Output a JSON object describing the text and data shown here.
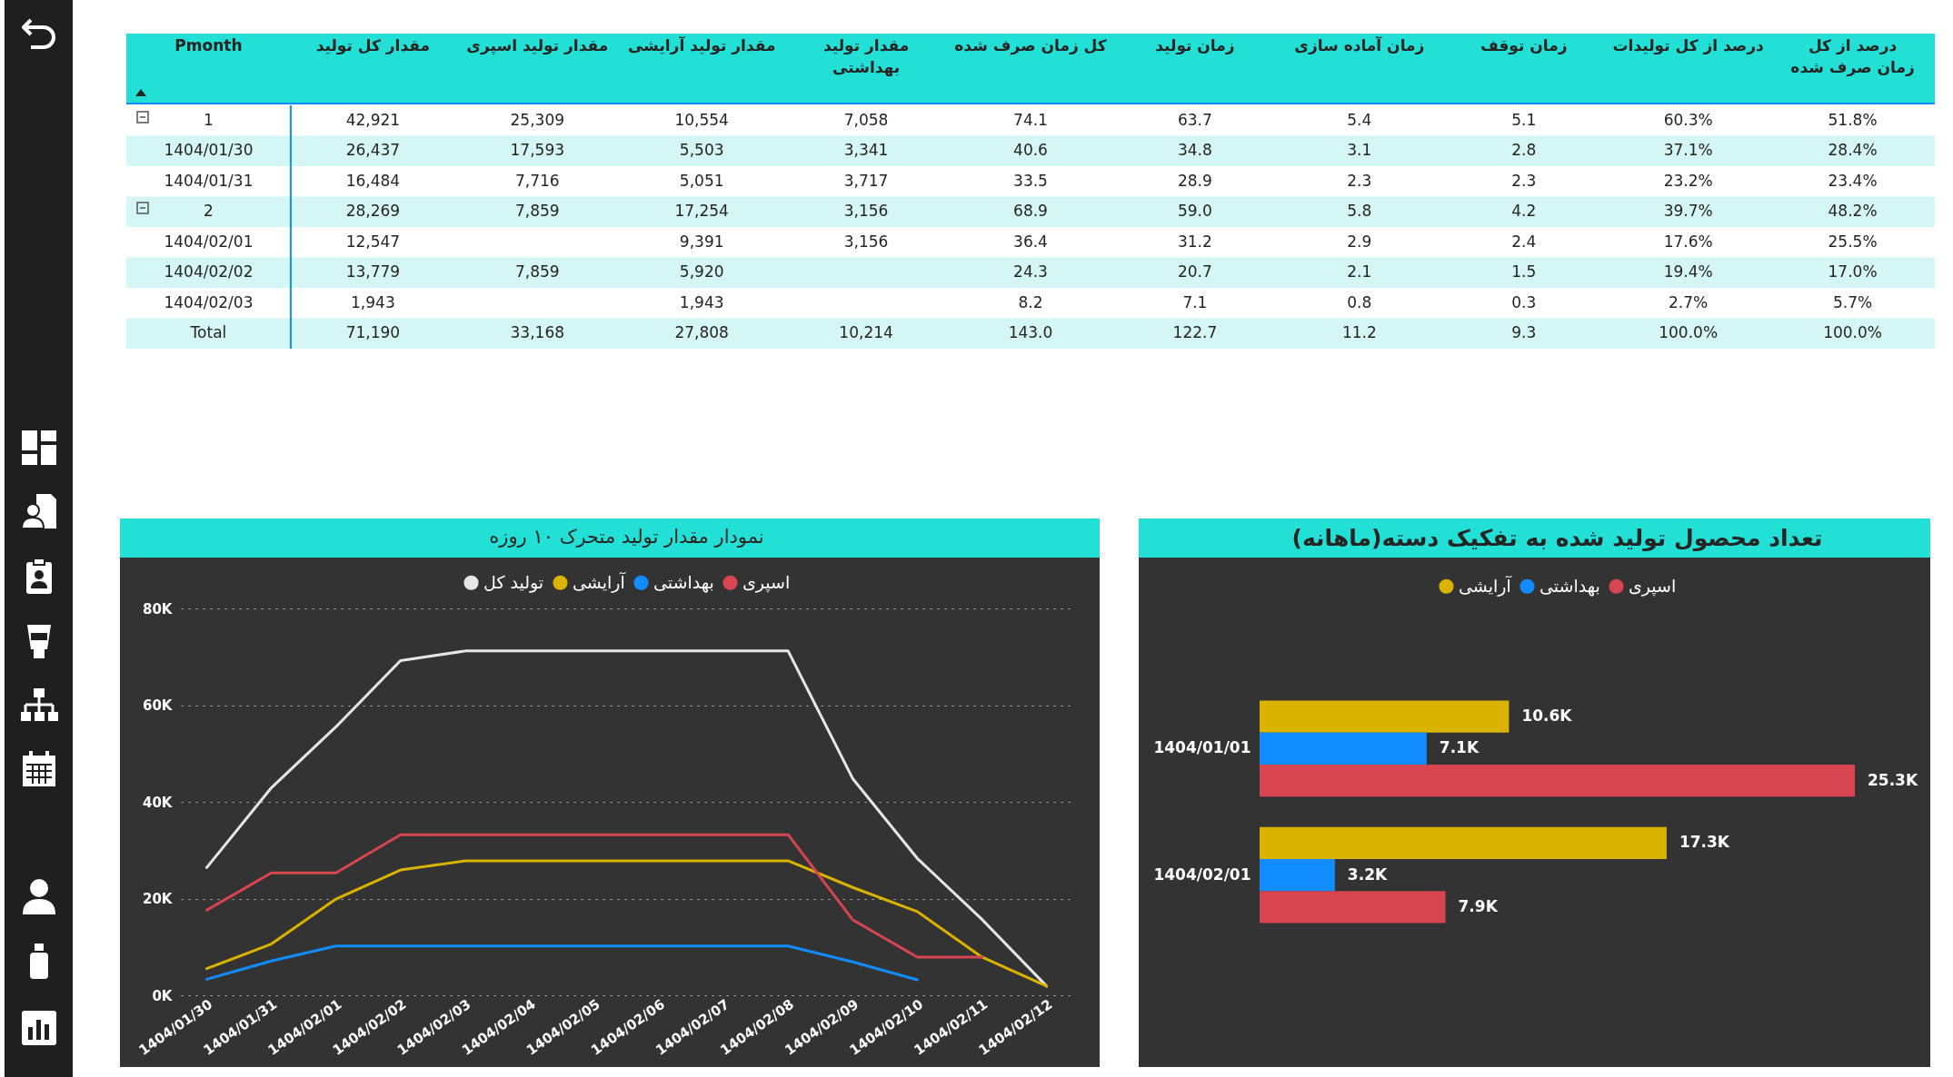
{
  "chart_data": [
    {
      "type": "other",
      "ylabel": "Pmonth",
      "categories": [
        "مقدار کل تولید",
        "مقدار تولید اسپری",
        "مقدار تولید آرایشی",
        "مقدار تولید بهداشتی",
        "کل زمان صرف شده",
        "زمان تولید",
        "زمان آماده سازی",
        "زمان توقف",
        "درصد از کل تولیدات",
        "درصد از کل زمان صرف شده"
      ],
      "y_categories": [
        "1",
        "1404/01/30",
        "1404/01/31",
        "2",
        "1404/02/01",
        "1404/02/02",
        "1404/02/03",
        "Total"
      ],
      "cell_labels": [
        [
          "42,921",
          "25,309",
          "10,554",
          "7,058",
          "74.1",
          "63.7",
          "5.4",
          "5.1",
          "60.3%",
          "51.8%"
        ],
        [
          "26,437",
          "17,593",
          "5,503",
          "3,341",
          "40.6",
          "34.8",
          "3.1",
          "2.8",
          "37.1%",
          "28.4%"
        ],
        [
          "16,484",
          "7,716",
          "5,051",
          "3,717",
          "33.5",
          "28.9",
          "2.3",
          "2.3",
          "23.2%",
          "23.4%"
        ],
        [
          "28,269",
          "7,859",
          "17,254",
          "3,156",
          "68.9",
          "59.0",
          "5.8",
          "4.2",
          "39.7%",
          "48.2%"
        ],
        [
          "12,547",
          null,
          "9,391",
          "3,156",
          "36.4",
          "31.2",
          "2.9",
          "2.4",
          "17.6%",
          "25.5%"
        ],
        [
          "13,779",
          "7,859",
          "5,920",
          null,
          "24.3",
          "20.7",
          "2.1",
          "1.5",
          "19.4%",
          "17.0%"
        ],
        [
          "1,943",
          null,
          "1,943",
          null,
          "8.2",
          "7.1",
          "0.8",
          "0.3",
          "2.7%",
          "5.7%"
        ],
        [
          "71,190",
          "33,168",
          "27,808",
          "10,214",
          "143.0",
          "122.7",
          "11.2",
          "9.3",
          "100.0%",
          "100.0%"
        ]
      ]
    },
    {
      "type": "line",
      "title": "نمودار مقدار تولید متحرک ۱۰ روزه",
      "categories": [
        "1404/01/30",
        "1404/01/31",
        "1404/02/01",
        "1404/02/02",
        "1404/02/03",
        "1404/02/04",
        "1404/02/05",
        "1404/02/06",
        "1404/02/07",
        "1404/02/08",
        "1404/02/09",
        "1404/02/10",
        "1404/02/11",
        "1404/02/12"
      ],
      "series": [
        {
          "name": "تولید کل",
          "color": "#e6e6e6",
          "values": [
            26400,
            42900,
            55500,
            69200,
            71200,
            71200,
            71200,
            71200,
            71200,
            71200,
            44800,
            28300,
            15700,
            1900
          ]
        },
        {
          "name": "آرایشی",
          "color": "#d9b300",
          "values": [
            5500,
            10600,
            19900,
            25900,
            27800,
            27800,
            27800,
            27800,
            27800,
            27800,
            22300,
            17300,
            7900,
            1900
          ]
        },
        {
          "name": "بهداشتی",
          "color": "#118dff",
          "values": [
            3300,
            7100,
            10200,
            10200,
            10200,
            10200,
            10200,
            10200,
            10200,
            10200,
            6900,
            3200,
            null,
            null
          ]
        },
        {
          "name": "اسپری",
          "color": "#d64550",
          "values": [
            17600,
            25300,
            25300,
            33200,
            33200,
            33200,
            33200,
            33200,
            33200,
            33200,
            15600,
            7900,
            7900,
            null
          ]
        }
      ],
      "ylim": [
        0,
        80000
      ],
      "yticks": [
        {
          "value": 0,
          "label": "0K"
        },
        {
          "value": 20000,
          "label": "20K"
        },
        {
          "value": 40000,
          "label": "40K"
        },
        {
          "value": 60000,
          "label": "60K"
        },
        {
          "value": 80000,
          "label": "80K"
        }
      ],
      "grid": "y",
      "legend": "top",
      "line_style": "solid"
    },
    {
      "type": "bar",
      "orientation": "horizontal",
      "title": "تعداد محصول تولید شده به تفکیک دسته(ماهانه)",
      "categories": [
        "1404/01/01",
        "1404/02/01"
      ],
      "series": [
        {
          "name": "آرایشی",
          "color": "#d9b300",
          "values": [
            10600,
            17300
          ],
          "value_labels": [
            "10.6K",
            "17.3K"
          ]
        },
        {
          "name": "بهداشتی",
          "color": "#118dff",
          "values": [
            7100,
            3200
          ],
          "value_labels": [
            "7.1K",
            "3.2K"
          ]
        },
        {
          "name": "اسپری",
          "color": "#d64550",
          "values": [
            25300,
            7900
          ],
          "value_labels": [
            "25.3K",
            "7.9K"
          ]
        }
      ],
      "legend": "top"
    }
  ]
}
